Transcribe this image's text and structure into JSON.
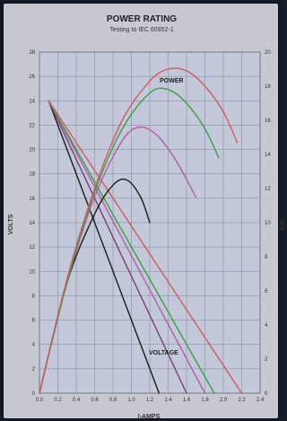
{
  "chart_data": {
    "type": "line",
    "title": "POWER RATING",
    "subtitle": "Testing to IEC 60952-1",
    "xlabel": "I-AMPS",
    "ylabel_left": "VOLTS",
    "ylabel_right": "W/A",
    "xlim": [
      0,
      2.4
    ],
    "ylim_left": [
      0,
      28
    ],
    "ylim_right": [
      0,
      20
    ],
    "x_ticks": [
      "0.0",
      "0.2",
      "0.4",
      "0.6",
      "0.8",
      "1.0",
      "1.2",
      "1.4",
      "1.6",
      "1.8",
      "2.0",
      "2.2",
      "2.4"
    ],
    "y_ticks_left": [
      "0",
      "2",
      "4",
      "6",
      "8",
      "10",
      "12",
      "14",
      "16",
      "18",
      "20",
      "22",
      "24",
      "26",
      "28"
    ],
    "y_ticks_right": [
      "0",
      "2",
      "4",
      "6",
      "8",
      "10",
      "12",
      "14",
      "16",
      "18",
      "20"
    ],
    "grid": true,
    "annotations": [
      {
        "text": "POWER"
      },
      {
        "text": "VOLTAGE"
      }
    ],
    "series": [
      {
        "kind": "voltage",
        "color": "#1a1a1a",
        "x": [
          0.1,
          1.3
        ],
        "y": [
          24,
          0
        ]
      },
      {
        "kind": "voltage",
        "color": "#7a3b7a",
        "x": [
          0.1,
          1.6
        ],
        "y": [
          24,
          0
        ]
      },
      {
        "kind": "voltage",
        "color": "#b55ca8",
        "x": [
          0.1,
          1.8
        ],
        "y": [
          24,
          0
        ]
      },
      {
        "kind": "voltage",
        "color": "#3aa040",
        "x": [
          0.1,
          1.9
        ],
        "y": [
          24,
          0
        ]
      },
      {
        "kind": "voltage",
        "color": "#d35a5a",
        "x": [
          0.1,
          2.2
        ],
        "y": [
          24,
          0
        ]
      },
      {
        "kind": "power",
        "color": "#1a1a1a",
        "x": [
          0,
          0.3,
          0.6,
          0.8,
          0.95,
          1.1,
          1.2
        ],
        "y": [
          0,
          6.5,
          10.5,
          12.2,
          12.5,
          11.5,
          10.0
        ]
      },
      {
        "kind": "power",
        "color": "#b55ca8",
        "x": [
          0,
          0.3,
          0.6,
          0.9,
          1.1,
          1.3,
          1.5,
          1.7
        ],
        "y": [
          0,
          6.5,
          11.5,
          14.8,
          15.6,
          15.0,
          13.5,
          11.5
        ]
      },
      {
        "kind": "power",
        "color": "#3aa040",
        "x": [
          0,
          0.3,
          0.6,
          0.9,
          1.2,
          1.4,
          1.6,
          1.8,
          1.95
        ],
        "y": [
          0,
          6.5,
          11.8,
          15.5,
          17.6,
          17.8,
          17.0,
          15.5,
          13.8
        ]
      },
      {
        "kind": "power",
        "color": "#d35a5a",
        "x": [
          0,
          0.3,
          0.6,
          0.9,
          1.2,
          1.4,
          1.6,
          1.8,
          2.0,
          2.15
        ],
        "y": [
          0,
          6.7,
          12.0,
          16.0,
          18.3,
          19.0,
          18.9,
          18.0,
          16.5,
          14.7
        ]
      }
    ]
  }
}
